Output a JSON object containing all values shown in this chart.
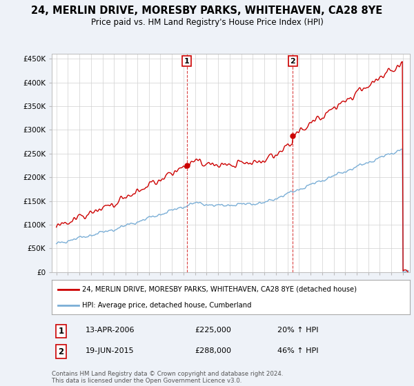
{
  "title": "24, MERLIN DRIVE, MORESBY PARKS, WHITEHAVEN, CA28 8YE",
  "subtitle": "Price paid vs. HM Land Registry's House Price Index (HPI)",
  "ylim": [
    0,
    460000
  ],
  "xlim_start": 1994.6,
  "xlim_end": 2025.6,
  "purchase1_x": 2006.28,
  "purchase1_y": 225000,
  "purchase2_x": 2015.46,
  "purchase2_y": 288000,
  "hpi_color": "#7aaed6",
  "house_color": "#cc0000",
  "legend_house": "24, MERLIN DRIVE, MORESBY PARKS, WHITEHAVEN, CA28 8YE (detached house)",
  "legend_hpi": "HPI: Average price, detached house, Cumberland",
  "annotation1_date": "13-APR-2006",
  "annotation1_price": "£225,000",
  "annotation1_hpi": "20% ↑ HPI",
  "annotation2_date": "19-JUN-2015",
  "annotation2_price": "£288,000",
  "annotation2_hpi": "46% ↑ HPI",
  "footnote": "Contains HM Land Registry data © Crown copyright and database right 2024.\nThis data is licensed under the Open Government Licence v3.0.",
  "background_color": "#eef2f8",
  "plot_bg_color": "#ffffff"
}
